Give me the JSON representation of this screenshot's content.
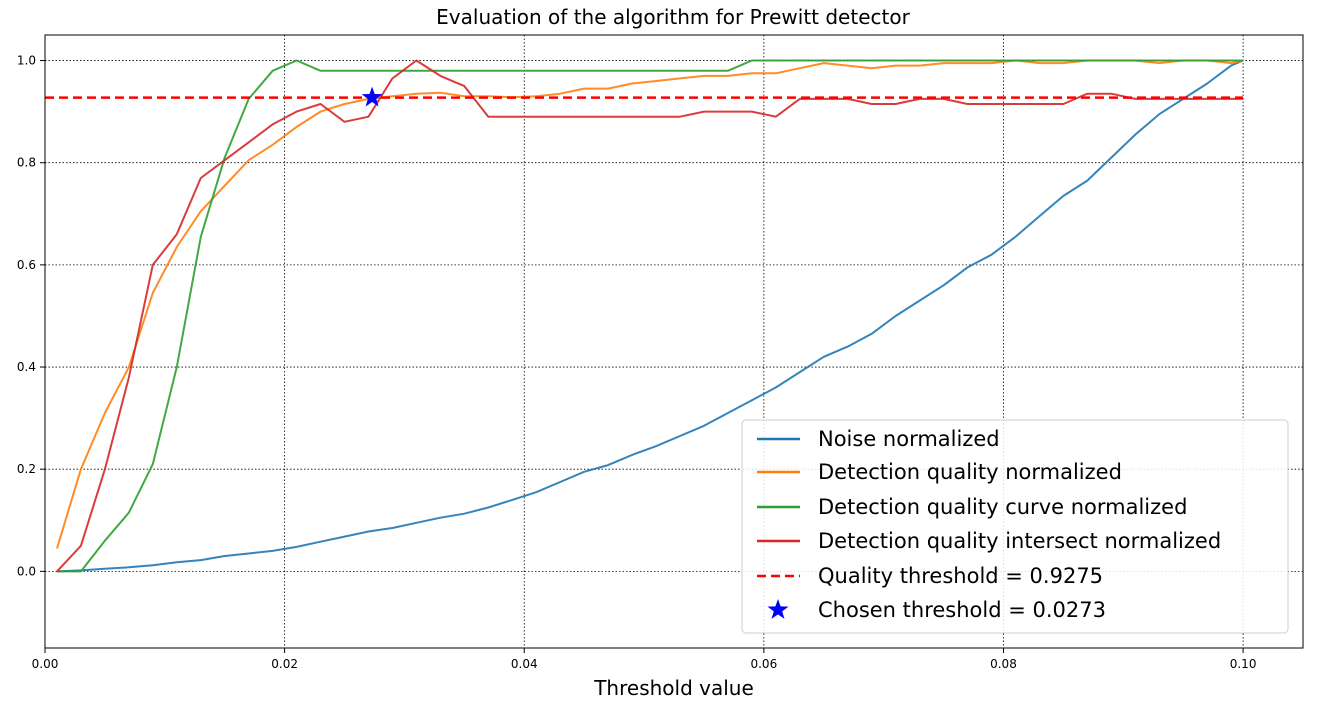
{
  "chart_data": {
    "type": "line",
    "title": "Evaluation of the algorithm for Prewitt detector",
    "xlabel": "Threshold value",
    "ylabel": "",
    "xlim": [
      0.0,
      0.105
    ],
    "ylim": [
      -0.15,
      1.05
    ],
    "xticks": [
      0.0,
      0.02,
      0.04,
      0.06,
      0.08,
      0.1
    ],
    "xtick_labels": [
      "0.00",
      "0.02",
      "0.04",
      "0.06",
      "0.08",
      "0.10"
    ],
    "yticks": [
      0.0,
      0.2,
      0.4,
      0.6,
      0.8,
      1.0
    ],
    "ytick_labels": [
      "0.0",
      "0.2",
      "0.4",
      "0.6",
      "0.8",
      "1.0"
    ],
    "grid": true,
    "legend_position": "lower-right",
    "series": [
      {
        "name": "Noise normalized",
        "color": "#1f77b4",
        "x": [
          0.001,
          0.003,
          0.005,
          0.007,
          0.009,
          0.011,
          0.013,
          0.015,
          0.017,
          0.019,
          0.021,
          0.023,
          0.025,
          0.027,
          0.029,
          0.031,
          0.033,
          0.035,
          0.037,
          0.039,
          0.041,
          0.043,
          0.045,
          0.047,
          0.049,
          0.051,
          0.053,
          0.055,
          0.057,
          0.059,
          0.061,
          0.063,
          0.065,
          0.067,
          0.069,
          0.071,
          0.073,
          0.075,
          0.077,
          0.079,
          0.081,
          0.083,
          0.085,
          0.087,
          0.089,
          0.091,
          0.093,
          0.095,
          0.097,
          0.099,
          0.1
        ],
        "values": [
          0.0,
          0.002,
          0.005,
          0.008,
          0.012,
          0.018,
          0.022,
          0.03,
          0.035,
          0.04,
          0.048,
          0.058,
          0.068,
          0.078,
          0.085,
          0.095,
          0.105,
          0.113,
          0.125,
          0.14,
          0.155,
          0.175,
          0.195,
          0.208,
          0.228,
          0.245,
          0.265,
          0.285,
          0.31,
          0.335,
          0.36,
          0.39,
          0.42,
          0.44,
          0.465,
          0.5,
          0.53,
          0.56,
          0.595,
          0.62,
          0.655,
          0.695,
          0.735,
          0.765,
          0.81,
          0.855,
          0.895,
          0.925,
          0.955,
          0.99,
          1.0
        ]
      },
      {
        "name": "Detection quality normalized",
        "color": "#ff7f0e",
        "x": [
          0.001,
          0.003,
          0.005,
          0.007,
          0.009,
          0.011,
          0.013,
          0.015,
          0.017,
          0.019,
          0.021,
          0.023,
          0.025,
          0.027,
          0.029,
          0.031,
          0.033,
          0.035,
          0.037,
          0.039,
          0.041,
          0.043,
          0.045,
          0.047,
          0.049,
          0.051,
          0.053,
          0.055,
          0.057,
          0.059,
          0.061,
          0.063,
          0.065,
          0.067,
          0.069,
          0.071,
          0.073,
          0.075,
          0.077,
          0.079,
          0.081,
          0.083,
          0.085,
          0.087,
          0.089,
          0.091,
          0.093,
          0.095,
          0.097,
          0.099,
          0.1
        ],
        "values": [
          0.045,
          0.2,
          0.31,
          0.4,
          0.545,
          0.635,
          0.705,
          0.755,
          0.805,
          0.835,
          0.87,
          0.9,
          0.915,
          0.925,
          0.93,
          0.935,
          0.937,
          0.93,
          0.93,
          0.928,
          0.93,
          0.935,
          0.945,
          0.945,
          0.955,
          0.96,
          0.965,
          0.97,
          0.97,
          0.975,
          0.975,
          0.985,
          0.995,
          0.99,
          0.985,
          0.99,
          0.99,
          0.995,
          0.995,
          0.995,
          1.0,
          0.995,
          0.995,
          1.0,
          1.0,
          1.0,
          0.995,
          1.0,
          1.0,
          0.995,
          1.0
        ]
      },
      {
        "name": "Detection quality curve normalized",
        "color": "#2ca02c",
        "x": [
          0.001,
          0.003,
          0.005,
          0.007,
          0.009,
          0.011,
          0.013,
          0.015,
          0.017,
          0.019,
          0.021,
          0.023,
          0.025,
          0.027,
          0.029,
          0.031,
          0.033,
          0.035,
          0.037,
          0.039,
          0.041,
          0.043,
          0.045,
          0.047,
          0.049,
          0.051,
          0.053,
          0.055,
          0.057,
          0.059,
          0.061,
          0.063,
          0.065,
          0.067,
          0.069,
          0.071,
          0.073,
          0.075,
          0.077,
          0.079,
          0.081,
          0.083,
          0.085,
          0.087,
          0.089,
          0.091,
          0.093,
          0.095,
          0.097,
          0.099,
          0.1
        ],
        "values": [
          0.0,
          0.0,
          0.06,
          0.115,
          0.21,
          0.4,
          0.655,
          0.81,
          0.925,
          0.98,
          1.0,
          0.98,
          0.98,
          0.98,
          0.98,
          0.98,
          0.98,
          0.98,
          0.98,
          0.98,
          0.98,
          0.98,
          0.98,
          0.98,
          0.98,
          0.98,
          0.98,
          0.98,
          0.98,
          1.0,
          1.0,
          1.0,
          1.0,
          1.0,
          1.0,
          1.0,
          1.0,
          1.0,
          1.0,
          1.0,
          1.0,
          1.0,
          1.0,
          1.0,
          1.0,
          1.0,
          1.0,
          1.0,
          1.0,
          1.0,
          1.0
        ]
      },
      {
        "name": "Detection quality intersect normalized",
        "color": "#d62728",
        "x": [
          0.001,
          0.003,
          0.005,
          0.007,
          0.009,
          0.011,
          0.013,
          0.015,
          0.017,
          0.019,
          0.021,
          0.023,
          0.025,
          0.027,
          0.029,
          0.031,
          0.033,
          0.035,
          0.037,
          0.039,
          0.041,
          0.043,
          0.045,
          0.047,
          0.049,
          0.051,
          0.053,
          0.055,
          0.057,
          0.059,
          0.061,
          0.063,
          0.065,
          0.067,
          0.069,
          0.071,
          0.073,
          0.075,
          0.077,
          0.079,
          0.081,
          0.083,
          0.085,
          0.087,
          0.089,
          0.091,
          0.093,
          0.095,
          0.097,
          0.099,
          0.1
        ],
        "values": [
          0.0,
          0.05,
          0.2,
          0.38,
          0.6,
          0.66,
          0.77,
          0.805,
          0.84,
          0.875,
          0.9,
          0.915,
          0.88,
          0.89,
          0.965,
          1.0,
          0.97,
          0.95,
          0.89,
          0.89,
          0.89,
          0.89,
          0.89,
          0.89,
          0.89,
          0.89,
          0.89,
          0.9,
          0.9,
          0.9,
          0.89,
          0.925,
          0.925,
          0.925,
          0.915,
          0.915,
          0.925,
          0.925,
          0.915,
          0.915,
          0.915,
          0.915,
          0.915,
          0.935,
          0.935,
          0.925,
          0.925,
          0.925,
          0.925,
          0.925,
          0.925
        ]
      }
    ],
    "threshold_line": {
      "name": "Quality threshold = 0.9275",
      "value": 0.9275,
      "color": "#ff0000",
      "style": "dashed"
    },
    "chosen_point": {
      "name": "Chosen threshold = 0.0273",
      "x": 0.0273,
      "y": 0.9275,
      "color": "#0000ff",
      "marker": "star"
    }
  }
}
